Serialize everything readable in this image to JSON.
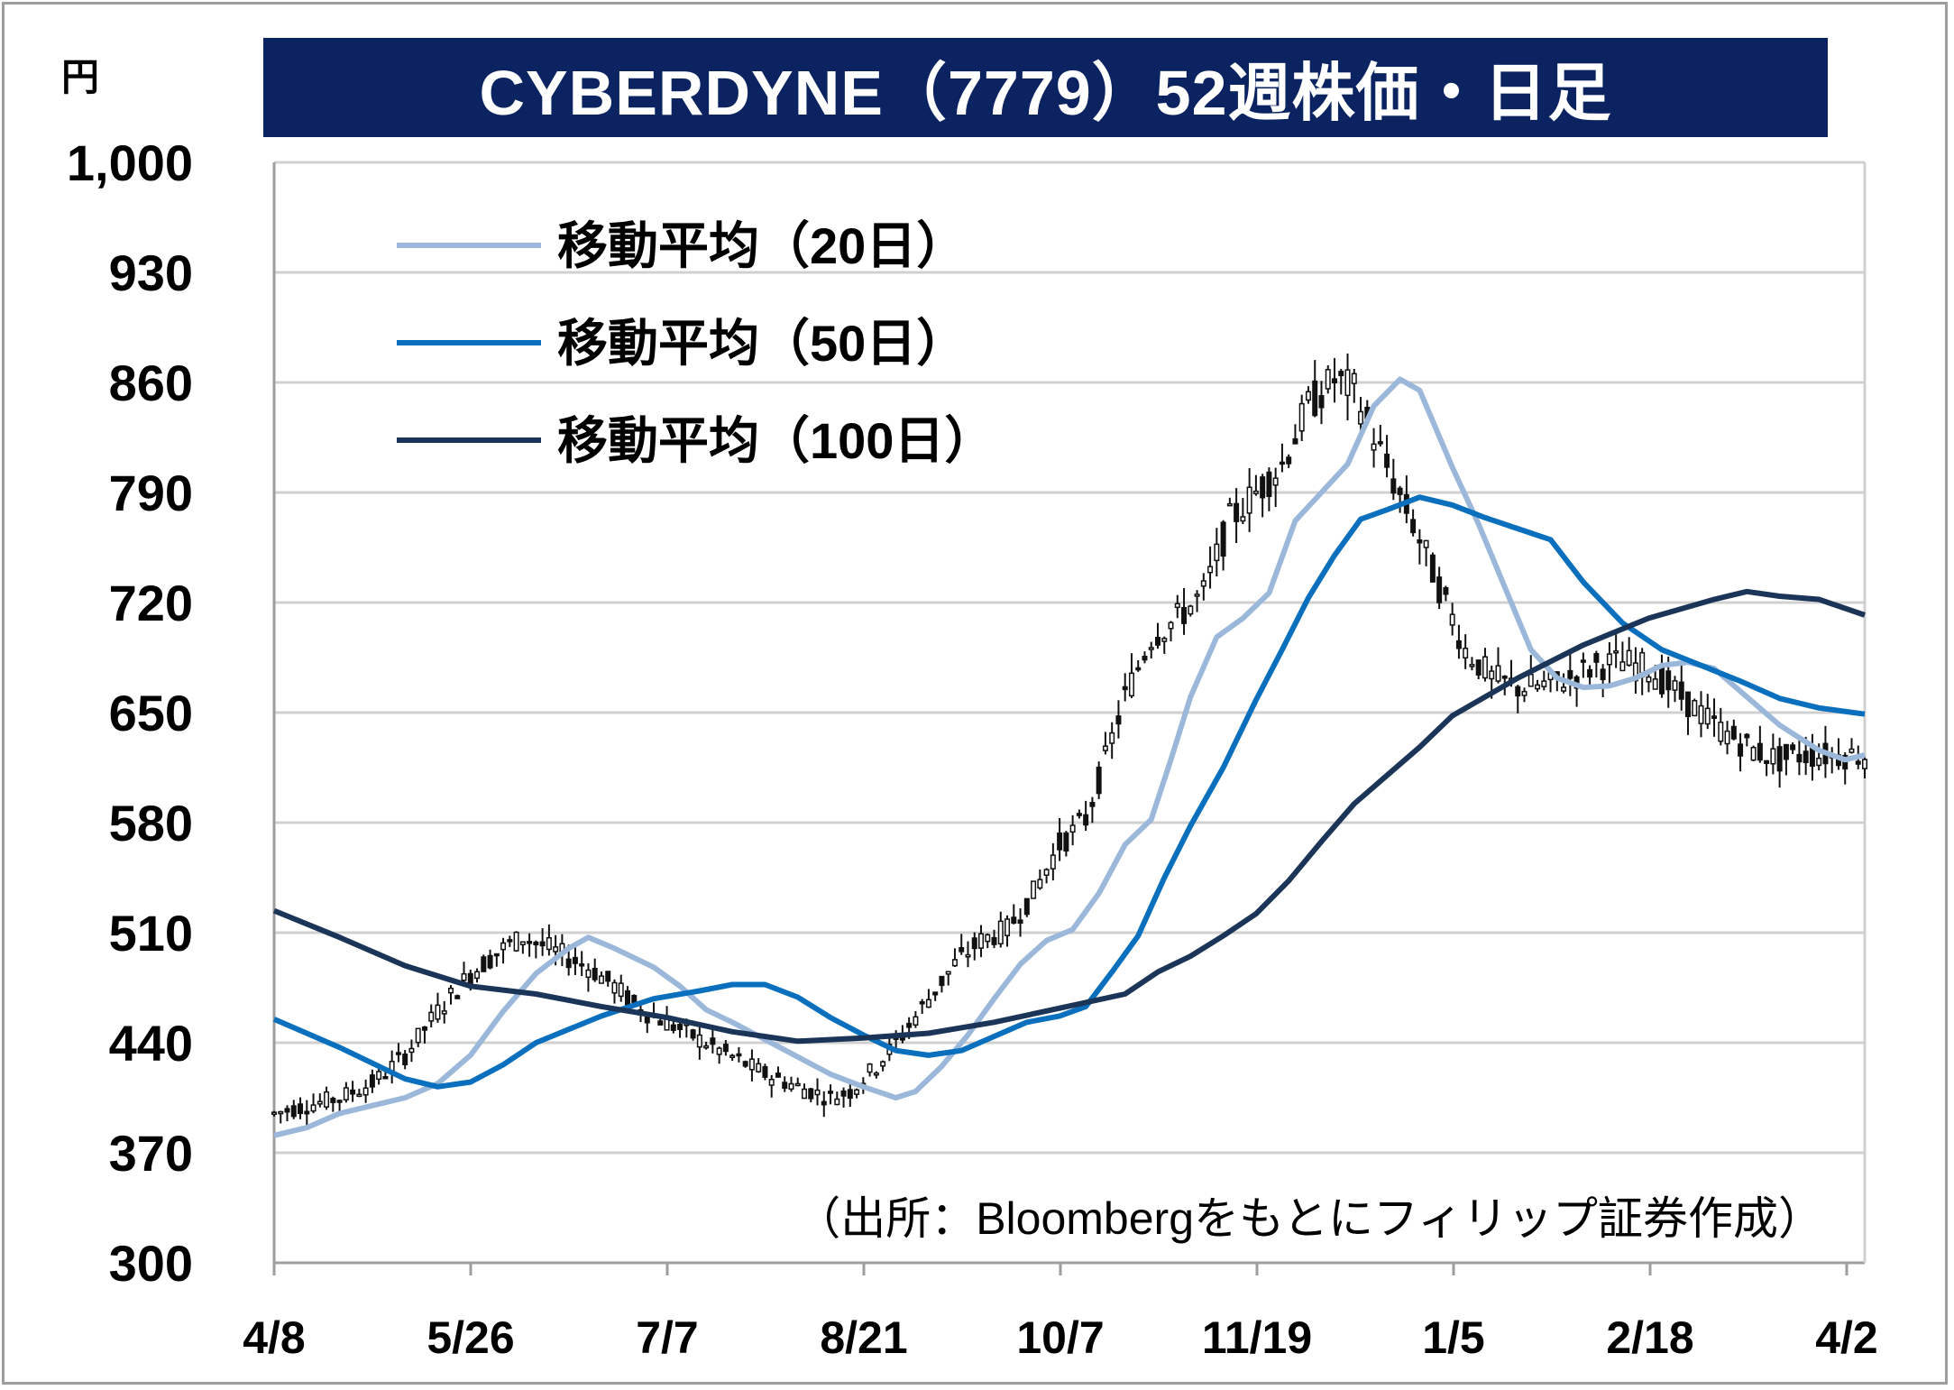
{
  "title": "CYBERDYNE（7779）52週株価・日足",
  "unit": "円",
  "source": "（出所：Bloombergをもとにフィリップ証券作成）",
  "colors": {
    "title_bg": "#0b2461",
    "ma20": "#9bb8da",
    "ma50": "#0a6fbd",
    "ma100": "#1b3558",
    "candle": "#111111",
    "grid": "#d0d0d0"
  },
  "chart_data": {
    "type": "candlestick",
    "ylim": [
      300,
      1000
    ],
    "yticks": [
      "1,000",
      "930",
      "860",
      "790",
      "720",
      "650",
      "580",
      "510",
      "440",
      "370",
      "300"
    ],
    "ytick_values": [
      1000,
      930,
      860,
      790,
      720,
      650,
      580,
      510,
      440,
      370,
      300
    ],
    "xticks": [
      "4/8",
      "5/26",
      "7/7",
      "8/21",
      "10/7",
      "11/19",
      "1/5",
      "2/18",
      "4/2"
    ],
    "grid": true,
    "legend_position": "top-left",
    "series": [
      {
        "name": "移動平均（20日）",
        "color_key": "ma20",
        "points": [
          [
            0,
            381
          ],
          [
            5,
            386
          ],
          [
            10,
            395
          ],
          [
            15,
            400
          ],
          [
            20,
            405
          ],
          [
            25,
            414
          ],
          [
            30,
            432
          ],
          [
            35,
            460
          ],
          [
            40,
            484
          ],
          [
            45,
            500
          ],
          [
            48,
            507
          ],
          [
            52,
            500
          ],
          [
            58,
            488
          ],
          [
            62,
            476
          ],
          [
            66,
            461
          ],
          [
            70,
            453
          ],
          [
            75,
            442
          ],
          [
            80,
            431
          ],
          [
            85,
            420
          ],
          [
            90,
            412
          ],
          [
            95,
            405
          ],
          [
            98,
            409
          ],
          [
            102,
            425
          ],
          [
            106,
            445
          ],
          [
            110,
            468
          ],
          [
            114,
            490
          ],
          [
            118,
            505
          ],
          [
            122,
            512
          ],
          [
            126,
            535
          ],
          [
            130,
            566
          ],
          [
            134,
            582
          ],
          [
            137,
            620
          ],
          [
            140,
            660
          ],
          [
            144,
            698
          ],
          [
            148,
            710
          ],
          [
            152,
            726
          ],
          [
            156,
            772
          ],
          [
            160,
            790
          ],
          [
            164,
            808
          ],
          [
            168,
            845
          ],
          [
            172,
            862
          ],
          [
            175,
            855
          ],
          [
            180,
            806
          ],
          [
            184,
            770
          ],
          [
            188,
            730
          ],
          [
            192,
            690
          ],
          [
            196,
            672
          ],
          [
            200,
            666
          ],
          [
            204,
            667
          ],
          [
            208,
            672
          ],
          [
            212,
            680
          ],
          [
            216,
            682
          ],
          [
            220,
            678
          ],
          [
            225,
            660
          ],
          [
            230,
            642
          ],
          [
            236,
            626
          ],
          [
            240,
            620
          ],
          [
            243,
            623
          ]
        ]
      },
      {
        "name": "移動平均（50日）",
        "color_key": "ma50",
        "points": [
          [
            0,
            455
          ],
          [
            10,
            437
          ],
          [
            20,
            417
          ],
          [
            25,
            412
          ],
          [
            30,
            415
          ],
          [
            35,
            426
          ],
          [
            40,
            440
          ],
          [
            50,
            457
          ],
          [
            58,
            468
          ],
          [
            65,
            473
          ],
          [
            70,
            477
          ],
          [
            75,
            477
          ],
          [
            80,
            469
          ],
          [
            85,
            456
          ],
          [
            90,
            445
          ],
          [
            95,
            435
          ],
          [
            100,
            432
          ],
          [
            105,
            435
          ],
          [
            110,
            444
          ],
          [
            115,
            453
          ],
          [
            120,
            457
          ],
          [
            124,
            463
          ],
          [
            128,
            485
          ],
          [
            132,
            508
          ],
          [
            136,
            545
          ],
          [
            140,
            578
          ],
          [
            145,
            615
          ],
          [
            150,
            658
          ],
          [
            154,
            690
          ],
          [
            158,
            723
          ],
          [
            162,
            750
          ],
          [
            166,
            773
          ],
          [
            170,
            779
          ],
          [
            175,
            787
          ],
          [
            180,
            782
          ],
          [
            185,
            774
          ],
          [
            190,
            767
          ],
          [
            195,
            760
          ],
          [
            200,
            733
          ],
          [
            206,
            707
          ],
          [
            212,
            690
          ],
          [
            218,
            680
          ],
          [
            224,
            670
          ],
          [
            230,
            659
          ],
          [
            236,
            653
          ],
          [
            243,
            649
          ]
        ]
      },
      {
        "name": "移動平均（100日）",
        "color_key": "ma100",
        "points": [
          [
            0,
            524
          ],
          [
            10,
            507
          ],
          [
            20,
            489
          ],
          [
            30,
            476
          ],
          [
            40,
            471
          ],
          [
            50,
            463
          ],
          [
            60,
            456
          ],
          [
            70,
            447
          ],
          [
            80,
            441
          ],
          [
            90,
            443
          ],
          [
            100,
            446
          ],
          [
            110,
            453
          ],
          [
            120,
            462
          ],
          [
            130,
            471
          ],
          [
            135,
            485
          ],
          [
            140,
            495
          ],
          [
            145,
            508
          ],
          [
            150,
            522
          ],
          [
            155,
            543
          ],
          [
            160,
            568
          ],
          [
            165,
            592
          ],
          [
            170,
            610
          ],
          [
            175,
            628
          ],
          [
            180,
            648
          ],
          [
            190,
            672
          ],
          [
            200,
            693
          ],
          [
            210,
            710
          ],
          [
            220,
            722
          ],
          [
            225,
            727
          ],
          [
            230,
            724
          ],
          [
            236,
            722
          ],
          [
            243,
            712
          ]
        ]
      }
    ]
  }
}
